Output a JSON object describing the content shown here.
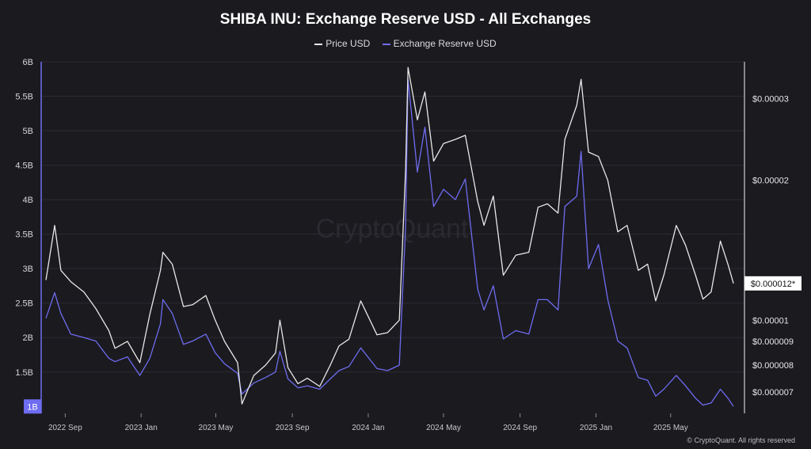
{
  "chart_data": {
    "type": "line",
    "title": "SHIBA INU: Exchange Reserve USD - All Exchanges",
    "watermark": "CryptoQuant",
    "copyright": "© CryptoQuant. All rights reserved",
    "x_ticks": [
      "2022 Sep",
      "2023 Jan",
      "2023 May",
      "2023 Sep",
      "2024 Jan",
      "2024 May",
      "2024 Sep",
      "2025 Jan",
      "2025 May"
    ],
    "x_range": [
      "2022-08",
      "2025-08"
    ],
    "left_axis": {
      "ticks": [
        "6B",
        "5.5B",
        "5B",
        "4.5B",
        "4B",
        "3.5B",
        "3B",
        "2.5B",
        "2B",
        "1.5B"
      ],
      "ylim": [
        0.9,
        6.0
      ],
      "current_label": "1B",
      "color": "#6e6cf0"
    },
    "right_axis": {
      "scale": "log",
      "ticks": [
        "$0.00003",
        "$0.00002",
        "$0.00001",
        "$0.000009",
        "$0.000008",
        "$0.000007"
      ],
      "ylim": [
        6.3e-06,
        3.6e-05
      ],
      "current_label": "$0.000012*",
      "color": "#ffffff"
    },
    "grid": true,
    "legend_position": "top-center",
    "series": [
      {
        "name": "Price USD",
        "axis": "right",
        "color": "#e8e8e8",
        "points": [
          [
            "2022-08-01",
            1.22e-05
          ],
          [
            "2022-08-15",
            1.6e-05
          ],
          [
            "2022-08-25",
            1.28e-05
          ],
          [
            "2022-09-10",
            1.21e-05
          ],
          [
            "2022-10-01",
            1.15e-05
          ],
          [
            "2022-10-20",
            1.06e-05
          ],
          [
            "2022-11-10",
            9.5e-06
          ],
          [
            "2022-11-20",
            8.7e-06
          ],
          [
            "2022-12-10",
            9e-06
          ],
          [
            "2022-12-30",
            8.1e-06
          ],
          [
            "2023-01-15",
            1.03e-05
          ],
          [
            "2023-02-01",
            1.28e-05
          ],
          [
            "2023-02-05",
            1.4e-05
          ],
          [
            "2023-02-20",
            1.32e-05
          ],
          [
            "2023-03-10",
            1.07e-05
          ],
          [
            "2023-03-25",
            1.08e-05
          ],
          [
            "2023-04-15",
            1.13e-05
          ],
          [
            "2023-04-30",
            1e-05
          ],
          [
            "2023-05-15",
            9e-06
          ],
          [
            "2023-06-05",
            8.1e-06
          ],
          [
            "2023-06-12",
            6.6e-06
          ],
          [
            "2023-07-01",
            7.6e-06
          ],
          [
            "2023-07-20",
            8e-06
          ],
          [
            "2023-08-05",
            8.5e-06
          ],
          [
            "2023-08-12",
            1e-05
          ],
          [
            "2023-08-25",
            7.9e-06
          ],
          [
            "2023-09-10",
            7.3e-06
          ],
          [
            "2023-09-25",
            7.5e-06
          ],
          [
            "2023-10-15",
            7.2e-06
          ],
          [
            "2023-11-01",
            8e-06
          ],
          [
            "2023-11-15",
            8.8e-06
          ],
          [
            "2023-12-01",
            9.1e-06
          ],
          [
            "2023-12-20",
            1.1e-05
          ],
          [
            "2024-01-15",
            9.3e-06
          ],
          [
            "2024-02-01",
            9.4e-06
          ],
          [
            "2024-02-20",
            1e-05
          ],
          [
            "2024-03-01",
            2.1e-05
          ],
          [
            "2024-03-05",
            3.5e-05
          ],
          [
            "2024-03-20",
            2.7e-05
          ],
          [
            "2024-04-01",
            3.1e-05
          ],
          [
            "2024-04-15",
            2.2e-05
          ],
          [
            "2024-05-01",
            2.4e-05
          ],
          [
            "2024-05-20",
            2.45e-05
          ],
          [
            "2024-06-05",
            2.5e-05
          ],
          [
            "2024-06-25",
            1.8e-05
          ],
          [
            "2024-07-05",
            1.6e-05
          ],
          [
            "2024-07-20",
            1.85e-05
          ],
          [
            "2024-08-05",
            1.25e-05
          ],
          [
            "2024-08-25",
            1.38e-05
          ],
          [
            "2024-09-15",
            1.4e-05
          ],
          [
            "2024-09-30",
            1.75e-05
          ],
          [
            "2024-10-15",
            1.78e-05
          ],
          [
            "2024-11-01",
            1.7e-05
          ],
          [
            "2024-11-12",
            2.45e-05
          ],
          [
            "2024-12-01",
            2.9e-05
          ],
          [
            "2024-12-08",
            3.3e-05
          ],
          [
            "2024-12-20",
            2.3e-05
          ],
          [
            "2025-01-05",
            2.25e-05
          ],
          [
            "2025-01-20",
            2e-05
          ],
          [
            "2025-02-05",
            1.55e-05
          ],
          [
            "2025-02-20",
            1.6e-05
          ],
          [
            "2025-03-10",
            1.28e-05
          ],
          [
            "2025-03-25",
            1.32e-05
          ],
          [
            "2025-04-07",
            1.1e-05
          ],
          [
            "2025-04-20",
            1.25e-05
          ],
          [
            "2025-05-10",
            1.6e-05
          ],
          [
            "2025-05-25",
            1.45e-05
          ],
          [
            "2025-06-10",
            1.25e-05
          ],
          [
            "2025-06-22",
            1.11e-05
          ],
          [
            "2025-07-05",
            1.15e-05
          ],
          [
            "2025-07-20",
            1.48e-05
          ],
          [
            "2025-08-01",
            1.32e-05
          ],
          [
            "2025-08-10",
            1.2e-05
          ]
        ]
      },
      {
        "name": "Exchange Reserve USD",
        "axis": "left",
        "color": "#6e6cf0",
        "points": [
          [
            "2022-08-01",
            2.28
          ],
          [
            "2022-08-15",
            2.65
          ],
          [
            "2022-08-25",
            2.35
          ],
          [
            "2022-09-10",
            2.05
          ],
          [
            "2022-10-01",
            2.0
          ],
          [
            "2022-10-20",
            1.95
          ],
          [
            "2022-11-10",
            1.7
          ],
          [
            "2022-11-20",
            1.65
          ],
          [
            "2022-12-10",
            1.72
          ],
          [
            "2022-12-30",
            1.45
          ],
          [
            "2023-01-15",
            1.7
          ],
          [
            "2023-02-01",
            2.2
          ],
          [
            "2023-02-05",
            2.55
          ],
          [
            "2023-02-20",
            2.35
          ],
          [
            "2023-03-10",
            1.9
          ],
          [
            "2023-03-25",
            1.95
          ],
          [
            "2023-04-15",
            2.05
          ],
          [
            "2023-04-30",
            1.78
          ],
          [
            "2023-05-15",
            1.62
          ],
          [
            "2023-06-05",
            1.48
          ],
          [
            "2023-06-12",
            1.18
          ],
          [
            "2023-07-01",
            1.34
          ],
          [
            "2023-07-20",
            1.42
          ],
          [
            "2023-08-05",
            1.5
          ],
          [
            "2023-08-12",
            1.8
          ],
          [
            "2023-08-25",
            1.4
          ],
          [
            "2023-09-10",
            1.27
          ],
          [
            "2023-09-25",
            1.3
          ],
          [
            "2023-10-15",
            1.25
          ],
          [
            "2023-11-01",
            1.4
          ],
          [
            "2023-11-15",
            1.52
          ],
          [
            "2023-12-01",
            1.58
          ],
          [
            "2023-12-20",
            1.85
          ],
          [
            "2024-01-15",
            1.55
          ],
          [
            "2024-02-01",
            1.52
          ],
          [
            "2024-02-20",
            1.6
          ],
          [
            "2024-03-01",
            3.6
          ],
          [
            "2024-03-05",
            5.75
          ],
          [
            "2024-03-20",
            4.4
          ],
          [
            "2024-04-01",
            5.05
          ],
          [
            "2024-04-15",
            3.9
          ],
          [
            "2024-05-01",
            4.15
          ],
          [
            "2024-05-20",
            4.0
          ],
          [
            "2024-06-05",
            4.3
          ],
          [
            "2024-06-25",
            2.7
          ],
          [
            "2024-07-05",
            2.4
          ],
          [
            "2024-07-20",
            2.75
          ],
          [
            "2024-08-05",
            1.98
          ],
          [
            "2024-08-25",
            2.1
          ],
          [
            "2024-09-15",
            2.05
          ],
          [
            "2024-09-30",
            2.55
          ],
          [
            "2024-10-15",
            2.55
          ],
          [
            "2024-11-01",
            2.4
          ],
          [
            "2024-11-12",
            3.9
          ],
          [
            "2024-12-01",
            4.05
          ],
          [
            "2024-12-08",
            4.7
          ],
          [
            "2024-12-20",
            3.0
          ],
          [
            "2025-01-05",
            3.35
          ],
          [
            "2025-01-20",
            2.55
          ],
          [
            "2025-02-05",
            1.95
          ],
          [
            "2025-02-20",
            1.85
          ],
          [
            "2025-03-10",
            1.42
          ],
          [
            "2025-03-25",
            1.38
          ],
          [
            "2025-04-07",
            1.15
          ],
          [
            "2025-04-20",
            1.25
          ],
          [
            "2025-05-10",
            1.45
          ],
          [
            "2025-05-25",
            1.3
          ],
          [
            "2025-06-10",
            1.12
          ],
          [
            "2025-06-22",
            1.02
          ],
          [
            "2025-07-05",
            1.05
          ],
          [
            "2025-07-20",
            1.25
          ],
          [
            "2025-08-01",
            1.12
          ],
          [
            "2025-08-10",
            1.0
          ]
        ]
      }
    ]
  }
}
